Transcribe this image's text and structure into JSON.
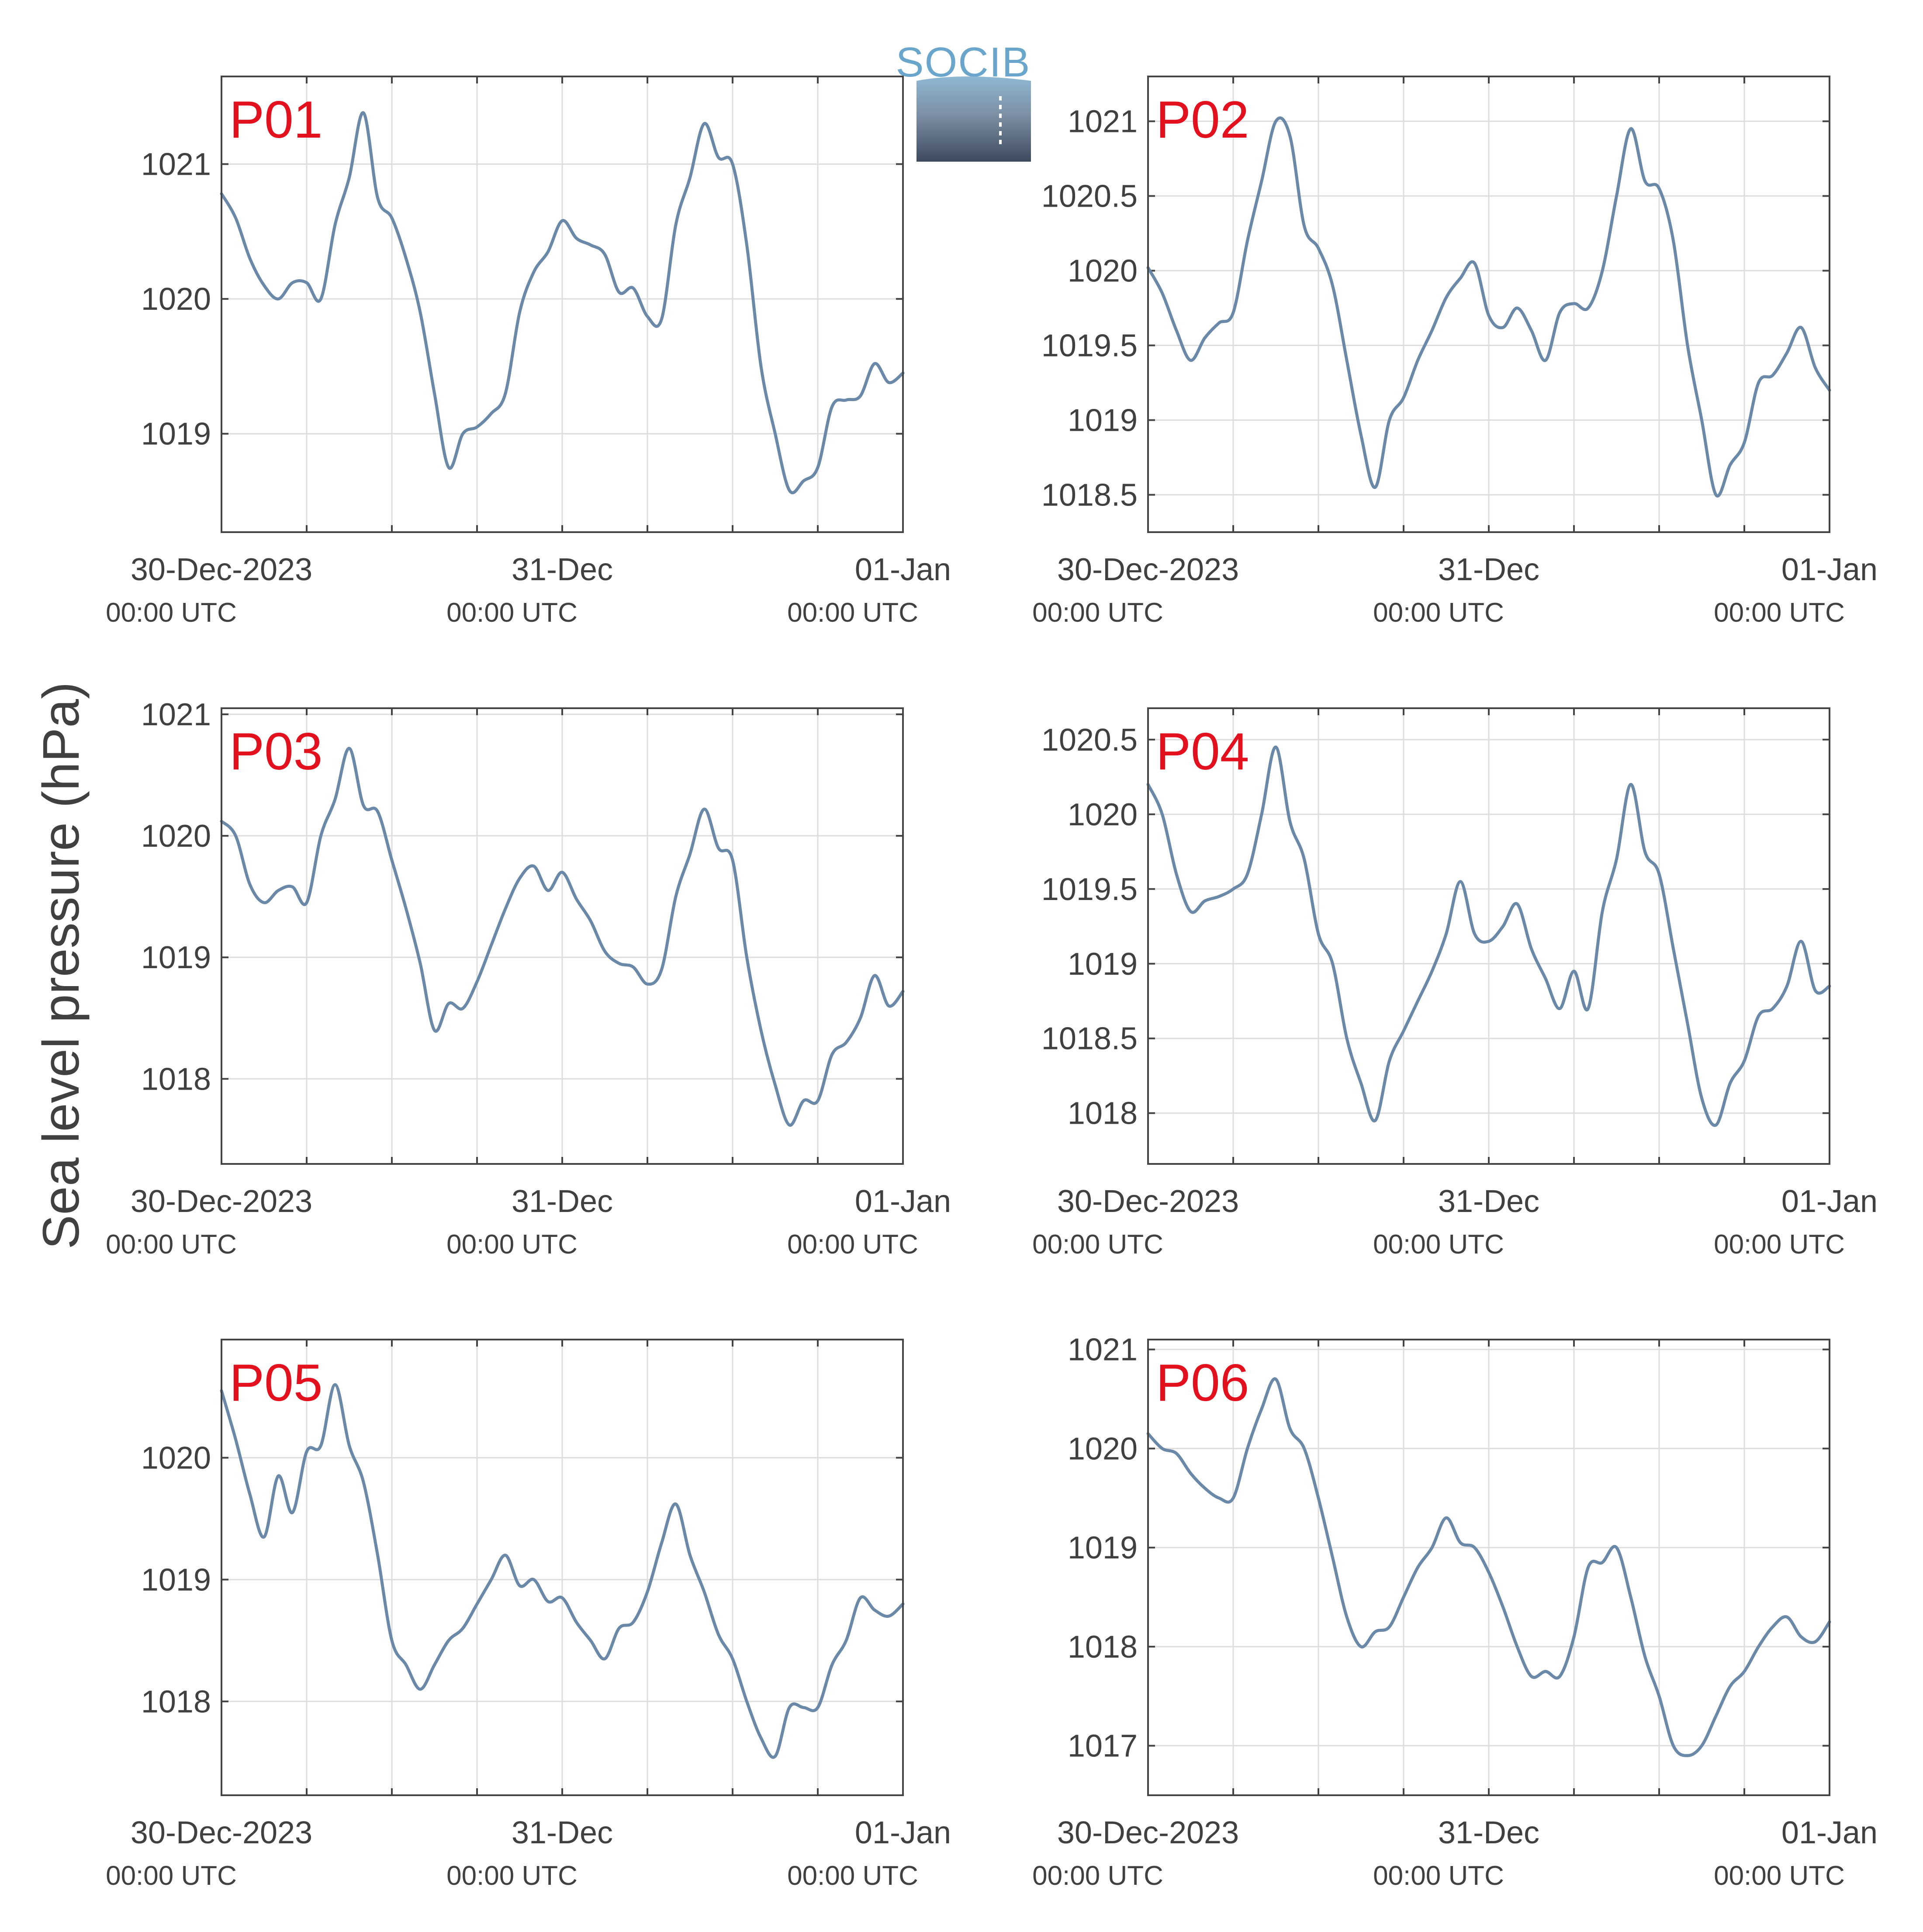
{
  "figure": {
    "ylabel": "Sea level pressure (hPa)",
    "logo_text": "SOCIB",
    "line_color": "#6a88a8",
    "title_color": "#e3101d",
    "grid": true
  },
  "chart_data": [
    {
      "type": "line",
      "title": "P01",
      "x_ticks": [
        {
          "label": "30-Dec-2023",
          "sub": "00:00 UTC"
        },
        {
          "label": "31-Dec",
          "sub": "00:00 UTC"
        },
        {
          "label": "01-Jan",
          "sub": "00:00 UTC"
        }
      ],
      "xlim": [
        0,
        48
      ],
      "ylim": [
        1018.27,
        1021.65
      ],
      "yticks": [
        1019,
        1020,
        1021
      ],
      "y_tick_labels": [
        "1019",
        "1020",
        "1021"
      ],
      "x": [
        0,
        1,
        2,
        3,
        4,
        5,
        6,
        7,
        8,
        9,
        10,
        11,
        12,
        13,
        14,
        15,
        16,
        17,
        18,
        19,
        20,
        21,
        22,
        23,
        24,
        25,
        26,
        27,
        28,
        29,
        30,
        31,
        32,
        33,
        34,
        35,
        36,
        37,
        38,
        39,
        40,
        41,
        42,
        43,
        44,
        45,
        46,
        47,
        48
      ],
      "values": [
        1020.78,
        1020.6,
        1020.3,
        1020.1,
        1020.0,
        1020.12,
        1020.12,
        1020.0,
        1020.55,
        1020.9,
        1021.38,
        1020.75,
        1020.6,
        1020.3,
        1019.9,
        1019.3,
        1018.75,
        1019.0,
        1019.05,
        1019.15,
        1019.3,
        1019.9,
        1020.2,
        1020.35,
        1020.58,
        1020.45,
        1020.4,
        1020.33,
        1020.05,
        1020.08,
        1019.87,
        1019.85,
        1020.55,
        1020.9,
        1021.3,
        1021.05,
        1021.0,
        1020.4,
        1019.5,
        1019.0,
        1018.58,
        1018.65,
        1018.75,
        1019.2,
        1019.25,
        1019.28,
        1019.52,
        1019.38,
        1019.45
      ]
    },
    {
      "type": "line",
      "title": "P02",
      "x_ticks": [
        {
          "label": "30-Dec-2023",
          "sub": "00:00 UTC"
        },
        {
          "label": "31-Dec",
          "sub": "00:00 UTC"
        },
        {
          "label": "01-Jan",
          "sub": "00:00 UTC"
        }
      ],
      "xlim": [
        0,
        48
      ],
      "ylim": [
        1018.25,
        1021.3
      ],
      "yticks": [
        1018.5,
        1019,
        1019.5,
        1020,
        1020.5,
        1021
      ],
      "y_tick_labels": [
        "1018.5",
        "1019",
        "1019.5",
        "1020",
        "1020.5",
        "1021"
      ],
      "x": [
        0,
        1,
        2,
        3,
        4,
        5,
        6,
        7,
        8,
        9,
        10,
        11,
        12,
        13,
        14,
        15,
        16,
        17,
        18,
        19,
        20,
        21,
        22,
        23,
        24,
        25,
        26,
        27,
        28,
        29,
        30,
        31,
        32,
        33,
        34,
        35,
        36,
        37,
        38,
        39,
        40,
        41,
        42,
        43,
        44,
        45,
        46,
        47,
        48
      ],
      "values": [
        1020.02,
        1019.85,
        1019.6,
        1019.4,
        1019.55,
        1019.65,
        1019.72,
        1020.2,
        1020.6,
        1021.0,
        1020.9,
        1020.3,
        1020.15,
        1019.9,
        1019.4,
        1018.9,
        1018.55,
        1019.0,
        1019.15,
        1019.4,
        1019.6,
        1019.82,
        1019.95,
        1020.05,
        1019.7,
        1019.62,
        1019.75,
        1019.6,
        1019.4,
        1019.72,
        1019.78,
        1019.75,
        1020.0,
        1020.5,
        1020.95,
        1020.6,
        1020.55,
        1020.2,
        1019.5,
        1019.0,
        1018.5,
        1018.7,
        1018.85,
        1019.25,
        1019.3,
        1019.45,
        1019.62,
        1019.35,
        1019.2
      ]
    },
    {
      "type": "line",
      "title": "P03",
      "x_ticks": [
        {
          "label": "30-Dec-2023",
          "sub": "00:00 UTC"
        },
        {
          "label": "31-Dec",
          "sub": "00:00 UTC"
        },
        {
          "label": "01-Jan",
          "sub": "00:00 UTC"
        }
      ],
      "xlim": [
        0,
        48
      ],
      "ylim": [
        1017.3,
        1021.05
      ],
      "yticks": [
        1018,
        1019,
        1020,
        1021
      ],
      "y_tick_labels": [
        "1018",
        "1019",
        "1020",
        "1021"
      ],
      "x": [
        0,
        1,
        2,
        3,
        4,
        5,
        6,
        7,
        8,
        9,
        10,
        11,
        12,
        13,
        14,
        15,
        16,
        17,
        18,
        19,
        20,
        21,
        22,
        23,
        24,
        25,
        26,
        27,
        28,
        29,
        30,
        31,
        32,
        33,
        34,
        35,
        36,
        37,
        38,
        39,
        40,
        41,
        42,
        43,
        44,
        45,
        46,
        47,
        48
      ],
      "values": [
        1020.12,
        1020.0,
        1019.6,
        1019.45,
        1019.55,
        1019.58,
        1019.45,
        1020.0,
        1020.3,
        1020.72,
        1020.25,
        1020.2,
        1019.8,
        1019.4,
        1018.95,
        1018.4,
        1018.62,
        1018.58,
        1018.8,
        1019.1,
        1019.4,
        1019.65,
        1019.75,
        1019.55,
        1019.7,
        1019.48,
        1019.3,
        1019.05,
        1018.95,
        1018.92,
        1018.78,
        1018.9,
        1019.5,
        1019.85,
        1020.22,
        1019.9,
        1019.8,
        1019.0,
        1018.4,
        1017.95,
        1017.62,
        1017.82,
        1017.82,
        1018.2,
        1018.3,
        1018.5,
        1018.85,
        1018.6,
        1018.72
      ]
    },
    {
      "type": "line",
      "title": "P04",
      "x_ticks": [
        {
          "label": "30-Dec-2023",
          "sub": "00:00 UTC"
        },
        {
          "label": "31-Dec",
          "sub": "00:00 UTC"
        },
        {
          "label": "01-Jan",
          "sub": "00:00 UTC"
        }
      ],
      "xlim": [
        0,
        48
      ],
      "ylim": [
        1017.66,
        1020.71
      ],
      "yticks": [
        1018,
        1018.5,
        1019,
        1019.5,
        1020,
        1020.5
      ],
      "y_tick_labels": [
        "1018",
        "1018.5",
        "1019",
        "1019.5",
        "1020",
        "1020.5"
      ],
      "x": [
        0,
        1,
        2,
        3,
        4,
        5,
        6,
        7,
        8,
        9,
        10,
        11,
        12,
        13,
        14,
        15,
        16,
        17,
        18,
        19,
        20,
        21,
        22,
        23,
        24,
        25,
        26,
        27,
        28,
        29,
        30,
        31,
        32,
        33,
        34,
        35,
        36,
        37,
        38,
        39,
        40,
        41,
        42,
        43,
        44,
        45,
        46,
        47,
        48
      ],
      "values": [
        1020.2,
        1020.0,
        1019.6,
        1019.35,
        1019.42,
        1019.45,
        1019.5,
        1019.6,
        1020.0,
        1020.45,
        1019.95,
        1019.7,
        1019.2,
        1019.0,
        1018.5,
        1018.2,
        1017.95,
        1018.35,
        1018.55,
        1018.75,
        1018.95,
        1019.2,
        1019.55,
        1019.2,
        1019.15,
        1019.25,
        1019.4,
        1019.1,
        1018.9,
        1018.7,
        1018.95,
        1018.7,
        1019.35,
        1019.7,
        1020.2,
        1019.75,
        1019.6,
        1019.1,
        1018.6,
        1018.1,
        1017.92,
        1018.2,
        1018.35,
        1018.65,
        1018.7,
        1018.85,
        1019.15,
        1018.82,
        1018.85
      ]
    },
    {
      "type": "line",
      "title": "P05",
      "x_ticks": [
        {
          "label": "30-Dec-2023",
          "sub": "00:00 UTC"
        },
        {
          "label": "31-Dec",
          "sub": "00:00 UTC"
        },
        {
          "label": "01-Jan",
          "sub": "00:00 UTC"
        }
      ],
      "xlim": [
        0,
        48
      ],
      "ylim": [
        1017.23,
        1020.97
      ],
      "yticks": [
        1018,
        1019,
        1020
      ],
      "y_tick_labels": [
        "1018",
        "1019",
        "1020"
      ],
      "x": [
        0,
        1,
        2,
        3,
        4,
        5,
        6,
        7,
        8,
        9,
        10,
        11,
        12,
        13,
        14,
        15,
        16,
        17,
        18,
        19,
        20,
        21,
        22,
        23,
        24,
        25,
        26,
        27,
        28,
        29,
        30,
        31,
        32,
        33,
        34,
        35,
        36,
        37,
        38,
        39,
        40,
        41,
        42,
        43,
        44,
        45,
        46,
        47,
        48
      ],
      "values": [
        1020.55,
        1020.15,
        1019.7,
        1019.35,
        1019.85,
        1019.55,
        1020.05,
        1020.1,
        1020.6,
        1020.1,
        1019.8,
        1019.2,
        1018.5,
        1018.3,
        1018.1,
        1018.3,
        1018.5,
        1018.6,
        1018.8,
        1019.0,
        1019.2,
        1018.95,
        1019.0,
        1018.82,
        1018.85,
        1018.65,
        1018.5,
        1018.35,
        1018.6,
        1018.65,
        1018.9,
        1019.3,
        1019.62,
        1019.2,
        1018.9,
        1018.55,
        1018.35,
        1018.0,
        1017.7,
        1017.55,
        1017.95,
        1017.95,
        1017.95,
        1018.3,
        1018.5,
        1018.85,
        1018.75,
        1018.7,
        1018.8
      ]
    },
    {
      "type": "line",
      "title": "P06",
      "x_ticks": [
        {
          "label": "30-Dec-2023",
          "sub": "00:00 UTC"
        },
        {
          "label": "31-Dec",
          "sub": "00:00 UTC"
        },
        {
          "label": "01-Jan",
          "sub": "00:00 UTC"
        }
      ],
      "xlim": [
        0,
        48
      ],
      "ylim": [
        1016.5,
        1021.1
      ],
      "yticks": [
        1017,
        1018,
        1019,
        1020,
        1021
      ],
      "y_tick_labels": [
        "1017",
        "1018",
        "1019",
        "1020",
        "1021"
      ],
      "x": [
        0,
        1,
        2,
        3,
        4,
        5,
        6,
        7,
        8,
        9,
        10,
        11,
        12,
        13,
        14,
        15,
        16,
        17,
        18,
        19,
        20,
        21,
        22,
        23,
        24,
        25,
        26,
        27,
        28,
        29,
        30,
        31,
        32,
        33,
        34,
        35,
        36,
        37,
        38,
        39,
        40,
        41,
        42,
        43,
        44,
        45,
        46,
        47,
        48
      ],
      "values": [
        1020.15,
        1020.0,
        1019.95,
        1019.75,
        1019.6,
        1019.5,
        1019.5,
        1020.0,
        1020.4,
        1020.7,
        1020.2,
        1020.0,
        1019.5,
        1018.9,
        1018.3,
        1018.0,
        1018.15,
        1018.2,
        1018.5,
        1018.8,
        1019.0,
        1019.3,
        1019.05,
        1019.0,
        1018.75,
        1018.4,
        1018.0,
        1017.7,
        1017.75,
        1017.7,
        1018.1,
        1018.8,
        1018.85,
        1019.0,
        1018.5,
        1017.9,
        1017.5,
        1017.0,
        1016.9,
        1017.0,
        1017.3,
        1017.6,
        1017.75,
        1018.0,
        1018.2,
        1018.3,
        1018.1,
        1018.05,
        1018.25
      ]
    }
  ]
}
